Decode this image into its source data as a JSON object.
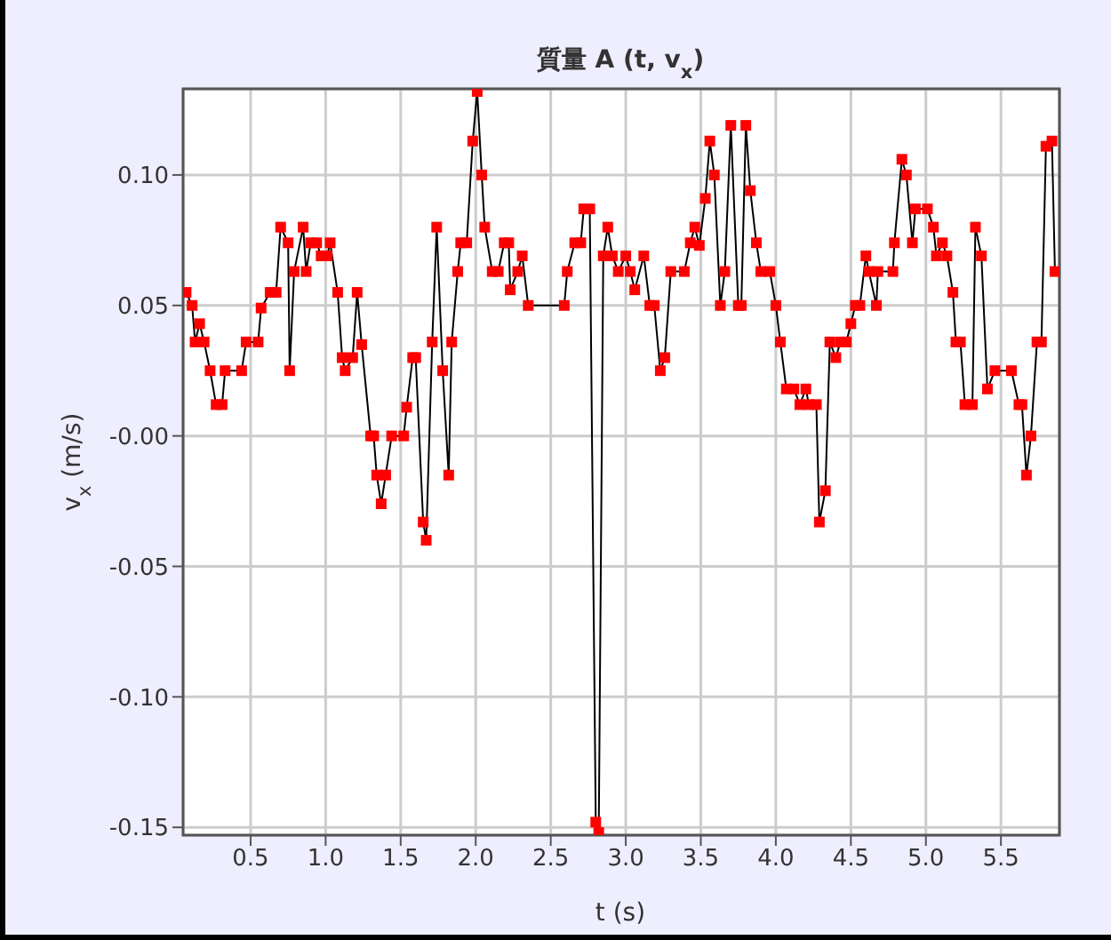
{
  "chart_data": {
    "type": "line",
    "title": "質量 A (t, v$_{x}$)",
    "xlabel": "t (s)",
    "ylabel": "v$_{x}$ (m/s)",
    "xlim": [
      0.05,
      5.89
    ],
    "xticks": [
      {
        "value": 0.5,
        "label": "0.5"
      },
      {
        "value": 1,
        "label": "1.0"
      },
      {
        "value": 1.5,
        "label": "1.5"
      },
      {
        "value": 2,
        "label": "2.0"
      },
      {
        "value": 2.5,
        "label": "2.5"
      },
      {
        "value": 3,
        "label": "3.0"
      },
      {
        "value": 3.5,
        "label": "3.5"
      },
      {
        "value": 4,
        "label": "4.0"
      },
      {
        "value": 4.5,
        "label": "4.5"
      },
      {
        "value": 5,
        "label": "5.0"
      },
      {
        "value": 5.5,
        "label": "5.5"
      }
    ],
    "ylim": [
      -0.153,
      0.133
    ],
    "yticks": [
      {
        "value": -0.15,
        "label": "-0.15"
      },
      {
        "value": -0.1,
        "label": "-0.10"
      },
      {
        "value": -0.05,
        "label": "-0.05"
      },
      {
        "value": 0,
        "label": "-0.00"
      },
      {
        "value": 0.05,
        "label": "0.05"
      },
      {
        "value": 0.1,
        "label": "0.10"
      }
    ],
    "grid": true,
    "marker": "square",
    "x": [
      0.07,
      0.11,
      0.13,
      0.16,
      0.19,
      0.23,
      0.27,
      0.31,
      0.33,
      0.44,
      0.47,
      0.55,
      0.57,
      0.63,
      0.67,
      0.7,
      0.75,
      0.76,
      0.79,
      0.85,
      0.87,
      0.9,
      0.94,
      0.97,
      1.01,
      1.03,
      1.08,
      1.11,
      1.13,
      1.18,
      1.21,
      1.24,
      1.3,
      1.32,
      1.34,
      1.37,
      1.4,
      1.44,
      1.52,
      1.54,
      1.58,
      1.6,
      1.65,
      1.67,
      1.71,
      1.74,
      1.78,
      1.82,
      1.84,
      1.88,
      1.9,
      1.94,
      1.98,
      2.01,
      2.04,
      2.06,
      2.11,
      2.15,
      2.19,
      2.22,
      2.23,
      2.28,
      2.31,
      2.35,
      2.59,
      2.61,
      2.66,
      2.7,
      2.72,
      2.76,
      2.8,
      2.82,
      2.85,
      2.88,
      2.91,
      2.95,
      3.0,
      3.03,
      3.06,
      3.12,
      3.16,
      3.19,
      3.23,
      3.26,
      3.3,
      3.39,
      3.43,
      3.46,
      3.49,
      3.53,
      3.56,
      3.59,
      3.63,
      3.66,
      3.7,
      3.75,
      3.77,
      3.8,
      3.83,
      3.87,
      3.9,
      3.96,
      4.0,
      4.03,
      4.07,
      4.12,
      4.16,
      4.2,
      4.22,
      4.27,
      4.29,
      4.33,
      4.36,
      4.4,
      4.43,
      4.47,
      4.5,
      4.53,
      4.56,
      4.6,
      4.62,
      4.67,
      4.68,
      4.78,
      4.79,
      4.84,
      4.87,
      4.91,
      4.93,
      5.01,
      5.05,
      5.07,
      5.11,
      5.14,
      5.18,
      5.2,
      5.23,
      5.26,
      5.31,
      5.33,
      5.37,
      5.41,
      5.46,
      5.57,
      5.62,
      5.64,
      5.67,
      5.7,
      5.74,
      5.77,
      5.8,
      5.84,
      5.86
    ],
    "series": [
      {
        "color": "#ff0000",
        "values": [
          0.055,
          0.05,
          0.036,
          0.043,
          0.036,
          0.025,
          0.012,
          0.012,
          0.025,
          0.025,
          0.036,
          0.036,
          0.049,
          0.055,
          0.055,
          0.08,
          0.074,
          0.025,
          0.063,
          0.08,
          0.063,
          0.074,
          0.074,
          0.069,
          0.069,
          0.074,
          0.055,
          0.03,
          0.025,
          0.03,
          0.055,
          0.035,
          0.0,
          0.0,
          -0.015,
          -0.026,
          -0.015,
          0.0,
          0.0,
          0.011,
          0.03,
          0.03,
          -0.033,
          -0.04,
          0.036,
          0.08,
          0.025,
          -0.015,
          0.036,
          0.063,
          0.074,
          0.074,
          0.113,
          0.132,
          0.1,
          0.08,
          0.063,
          0.063,
          0.074,
          0.074,
          0.056,
          0.063,
          0.069,
          0.05,
          0.05,
          0.063,
          0.074,
          0.074,
          0.087,
          0.087,
          -0.148,
          -0.152,
          0.069,
          0.08,
          0.069,
          0.063,
          0.069,
          0.063,
          0.056,
          0.069,
          0.05,
          0.05,
          0.025,
          0.03,
          0.063,
          0.063,
          0.074,
          0.08,
          0.073,
          0.091,
          0.113,
          0.1,
          0.05,
          0.063,
          0.119,
          0.05,
          0.05,
          0.119,
          0.094,
          0.074,
          0.063,
          0.063,
          0.05,
          0.036,
          0.018,
          0.018,
          0.012,
          0.018,
          0.012,
          0.012,
          -0.033,
          -0.021,
          0.036,
          0.03,
          0.036,
          0.036,
          0.043,
          0.05,
          0.05,
          0.069,
          0.063,
          0.05,
          0.063,
          0.063,
          0.074,
          0.106,
          0.1,
          0.074,
          0.087,
          0.087,
          0.08,
          0.069,
          0.074,
          0.069,
          0.055,
          0.036,
          0.036,
          0.012,
          0.012,
          0.08,
          0.069,
          0.018,
          0.025,
          0.025,
          0.012,
          0.012,
          -0.015,
          0.0,
          0.036,
          0.036,
          0.111,
          0.113,
          0.063
        ]
      }
    ]
  }
}
